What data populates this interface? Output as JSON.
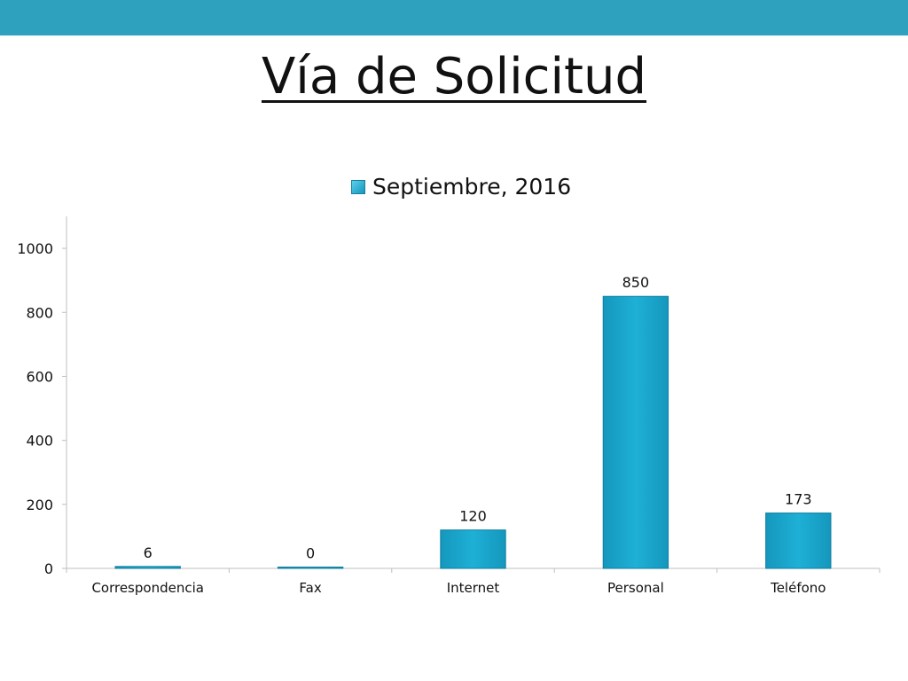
{
  "slide": {
    "title": "Vía de Solicitud"
  },
  "colors": {
    "top_bar": "#2ea1bf",
    "bar_fill": "#1aa3c9",
    "bar_stroke": "#0f7e9f"
  },
  "chart_data": {
    "type": "bar",
    "categories": [
      "Correspondencia",
      "Fax",
      "Internet",
      "Personal",
      "Teléfono"
    ],
    "series": [
      {
        "name": "Septiembre, 2016",
        "values": [
          6,
          0,
          120,
          850,
          173
        ]
      }
    ],
    "data_labels": [
      "6",
      "0",
      "120",
      "850",
      "173"
    ],
    "yticks": [
      0,
      200,
      400,
      600,
      800,
      1000
    ],
    "ylim": [
      0,
      1100
    ],
    "legend_position": "top",
    "grid": false
  }
}
